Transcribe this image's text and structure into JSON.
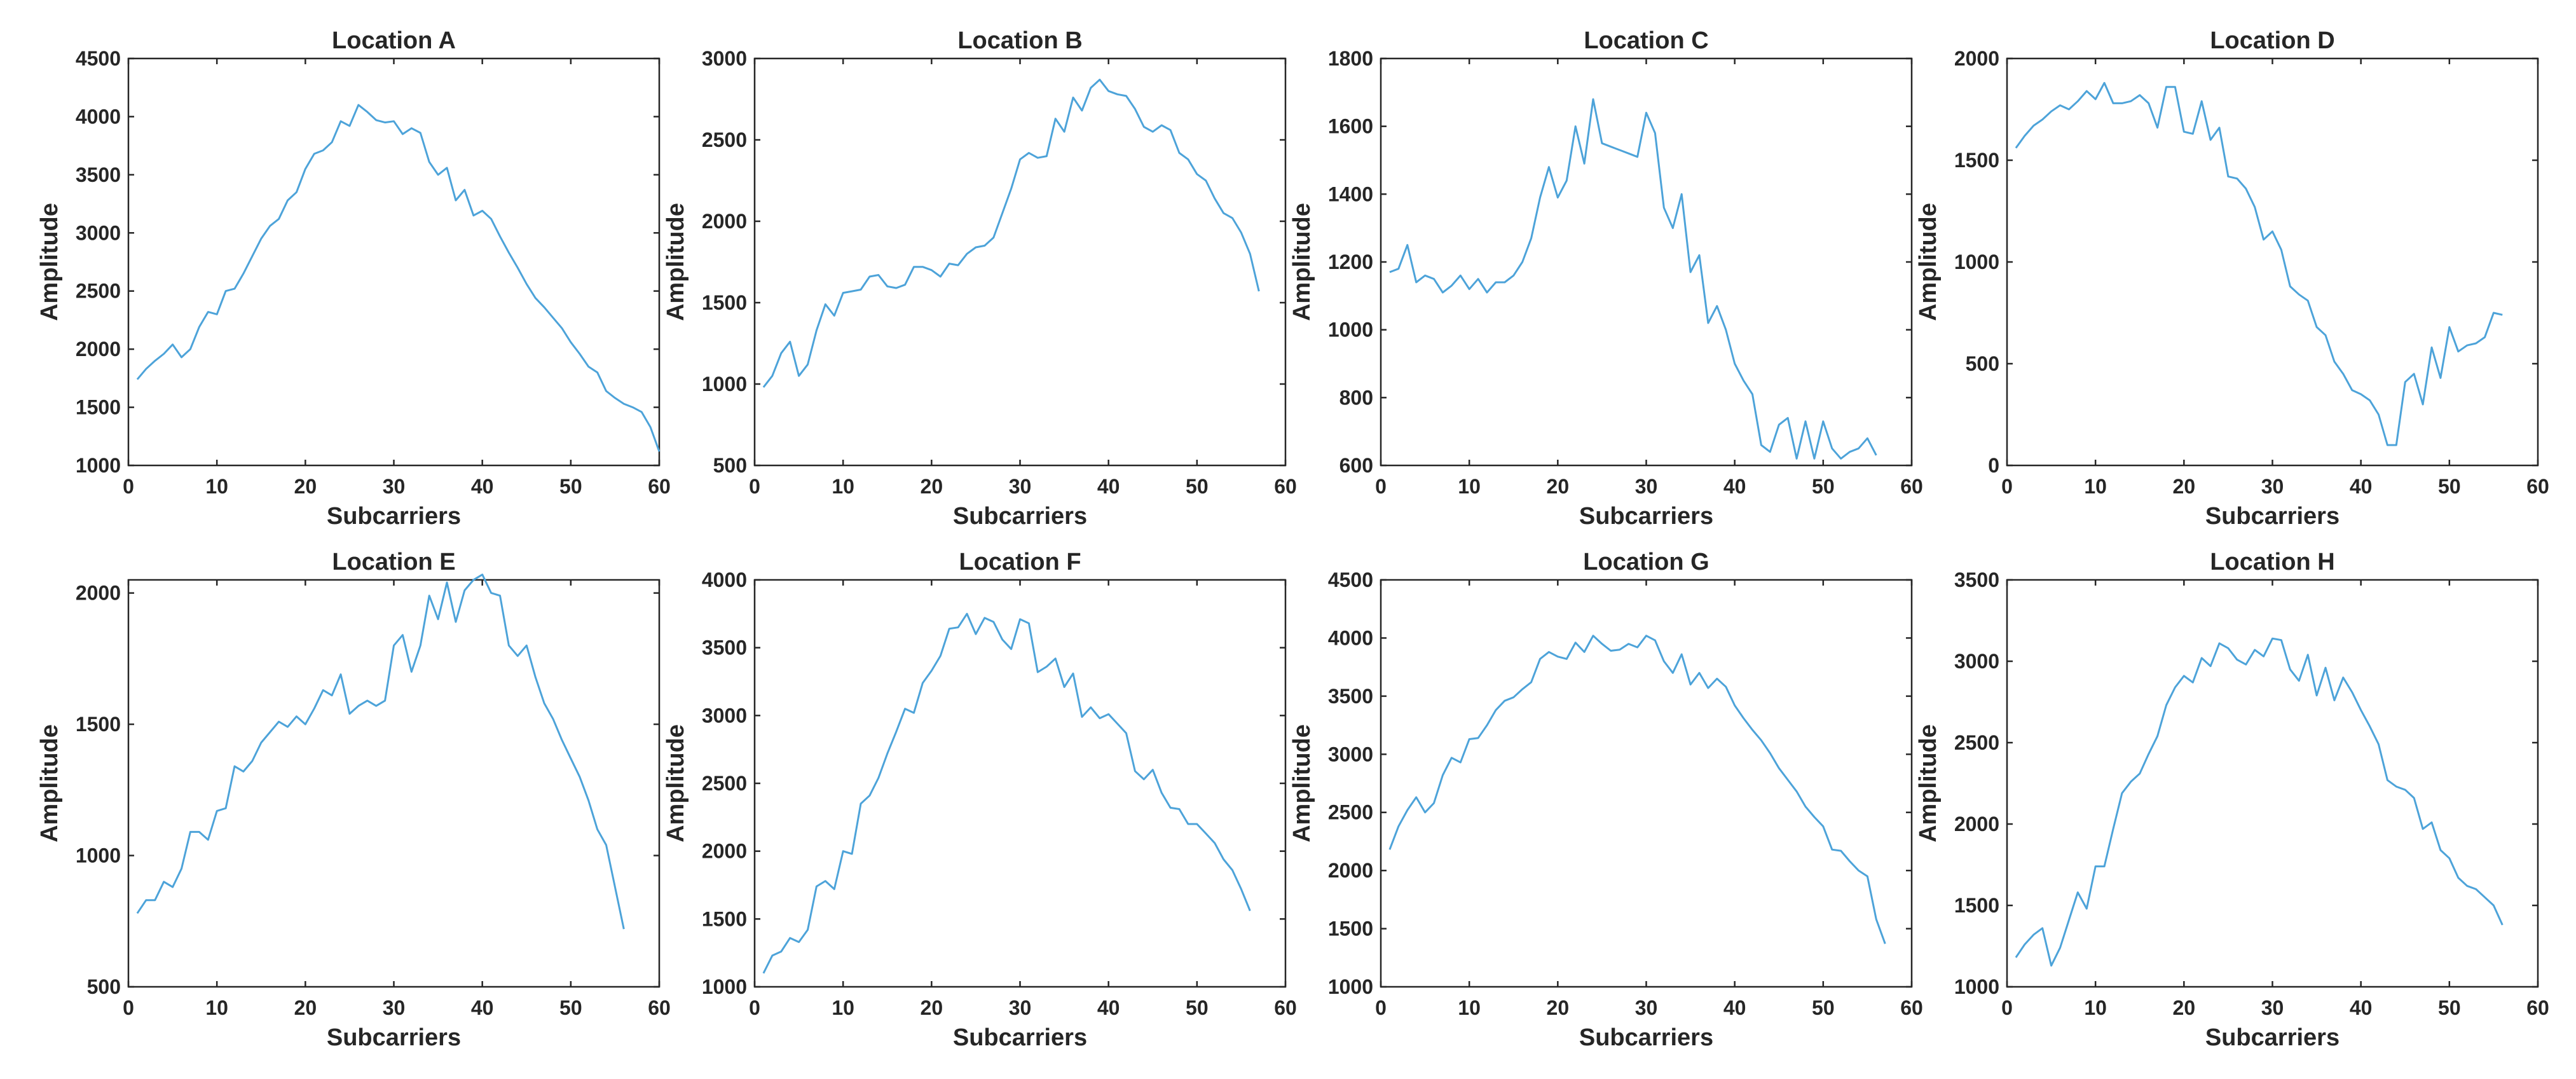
{
  "figure": {
    "line_color": "#4DA3D9",
    "background": "#ffffff"
  },
  "chart_data": [
    {
      "type": "line",
      "title": "Location A",
      "xlabel": "Subcarriers",
      "ylabel": "Amplitude",
      "xlim": [
        0,
        60
      ],
      "ylim": [
        1000,
        4500
      ],
      "xticks": [
        0,
        10,
        20,
        30,
        40,
        50,
        60
      ],
      "yticks": [
        1000,
        1500,
        2000,
        2500,
        3000,
        3500,
        4000,
        4500
      ],
      "grid": false,
      "x_start": 1,
      "values": [
        1740,
        1830,
        1900,
        1960,
        2040,
        1930,
        2000,
        2190,
        2320,
        2300,
        2500,
        2520,
        2650,
        2800,
        2950,
        3060,
        3120,
        3280,
        3350,
        3550,
        3680,
        3710,
        3780,
        3960,
        3920,
        4100,
        4040,
        3970,
        3950,
        3960,
        3850,
        3900,
        3860,
        3610,
        3500,
        3560,
        3280,
        3370,
        3150,
        3190,
        3120,
        2970,
        2830,
        2700,
        2560,
        2440,
        2360,
        2270,
        2180,
        2060,
        1960,
        1850,
        1800,
        1640,
        1580,
        1530,
        1500,
        1460,
        1330,
        1120
      ]
    },
    {
      "type": "line",
      "title": "Location B",
      "xlabel": "Subcarriers",
      "ylabel": "Amplitude",
      "xlim": [
        0,
        60
      ],
      "ylim": [
        500,
        3000
      ],
      "xticks": [
        0,
        10,
        20,
        30,
        40,
        50,
        60
      ],
      "yticks": [
        500,
        1000,
        1500,
        2000,
        2500,
        3000
      ],
      "grid": false,
      "x_start": 1,
      "values": [
        980,
        1050,
        1190,
        1260,
        1050,
        1120,
        1330,
        1490,
        1420,
        1560,
        1570,
        1580,
        1660,
        1670,
        1600,
        1590,
        1610,
        1720,
        1720,
        1700,
        1660,
        1740,
        1730,
        1800,
        1840,
        1850,
        1900,
        2050,
        2200,
        2380,
        2420,
        2390,
        2400,
        2630,
        2550,
        2760,
        2680,
        2820,
        2870,
        2800,
        2780,
        2770,
        2690,
        2580,
        2550,
        2590,
        2560,
        2420,
        2380,
        2290,
        2250,
        2140,
        2050,
        2020,
        1930,
        1800,
        1570
      ]
    },
    {
      "type": "line",
      "title": "Location C",
      "xlabel": "Subcarriers",
      "ylabel": "Amplitude",
      "xlim": [
        0,
        60
      ],
      "ylim": [
        600,
        1800
      ],
      "xticks": [
        0,
        10,
        20,
        30,
        40,
        50,
        60
      ],
      "yticks": [
        600,
        800,
        1000,
        1200,
        1400,
        1600,
        1800
      ],
      "grid": false,
      "x_start": 1,
      "values": [
        1170,
        1180,
        1250,
        1140,
        1160,
        1150,
        1110,
        1130,
        1160,
        1120,
        1150,
        1110,
        1140,
        1140,
        1160,
        1200,
        1270,
        1390,
        1480,
        1390,
        1440,
        1600,
        1490,
        1680,
        1550,
        1540,
        1530,
        1520,
        1510,
        1640,
        1580,
        1360,
        1300,
        1400,
        1170,
        1220,
        1020,
        1070,
        1000,
        900,
        850,
        810,
        660,
        640,
        720,
        740,
        620,
        730,
        620,
        730,
        650,
        620,
        640,
        650,
        680,
        630
      ]
    },
    {
      "type": "line",
      "title": "Location D",
      "xlabel": "Subcarriers",
      "ylabel": "Amplitude",
      "xlim": [
        0,
        60
      ],
      "ylim": [
        0,
        2000
      ],
      "xticks": [
        0,
        10,
        20,
        30,
        40,
        50,
        60
      ],
      "yticks": [
        0,
        500,
        1000,
        1500,
        2000
      ],
      "grid": false,
      "x_start": 1,
      "values": [
        1560,
        1620,
        1670,
        1700,
        1740,
        1770,
        1750,
        1790,
        1840,
        1800,
        1880,
        1780,
        1780,
        1790,
        1820,
        1780,
        1660,
        1860,
        1860,
        1640,
        1630,
        1790,
        1600,
        1660,
        1420,
        1410,
        1360,
        1270,
        1110,
        1150,
        1060,
        880,
        840,
        810,
        680,
        640,
        510,
        450,
        370,
        350,
        320,
        250,
        100,
        100,
        410,
        450,
        300,
        580,
        430,
        680,
        560,
        590,
        600,
        630,
        750,
        740
      ]
    },
    {
      "type": "line",
      "title": "Location E",
      "xlabel": "Subcarriers",
      "ylabel": "Amplitude",
      "xlim": [
        0,
        60
      ],
      "ylim": [
        500,
        2050
      ],
      "xticks": [
        0,
        10,
        20,
        30,
        40,
        50,
        60
      ],
      "yticks": [
        500,
        1000,
        1500,
        2000
      ],
      "grid": false,
      "x_start": 1,
      "values": [
        780,
        830,
        830,
        900,
        880,
        950,
        1090,
        1090,
        1060,
        1170,
        1180,
        1340,
        1320,
        1360,
        1430,
        1470,
        1510,
        1490,
        1530,
        1500,
        1560,
        1630,
        1610,
        1690,
        1540,
        1570,
        1590,
        1570,
        1590,
        1800,
        1840,
        1700,
        1800,
        1990,
        1900,
        2040,
        1890,
        2010,
        2050,
        2070,
        2000,
        1990,
        1800,
        1760,
        1800,
        1680,
        1580,
        1520,
        1440,
        1370,
        1300,
        1210,
        1100,
        1040,
        880,
        720
      ]
    },
    {
      "type": "line",
      "title": "Location F",
      "xlabel": "Subcarriers",
      "ylabel": "Amplitude",
      "xlim": [
        0,
        60
      ],
      "ylim": [
        1000,
        4000
      ],
      "xticks": [
        0,
        10,
        20,
        30,
        40,
        50,
        60
      ],
      "yticks": [
        1000,
        1500,
        2000,
        2500,
        3000,
        3500,
        4000
      ],
      "grid": false,
      "x_start": 1,
      "values": [
        1100,
        1230,
        1260,
        1360,
        1330,
        1420,
        1740,
        1780,
        1720,
        2000,
        1980,
        2350,
        2410,
        2540,
        2720,
        2880,
        3050,
        3020,
        3240,
        3330,
        3440,
        3640,
        3650,
        3750,
        3600,
        3720,
        3690,
        3560,
        3490,
        3710,
        3680,
        3320,
        3360,
        3420,
        3210,
        3310,
        2990,
        3060,
        2980,
        3010,
        2940,
        2870,
        2590,
        2530,
        2600,
        2430,
        2320,
        2310,
        2200,
        2200,
        2130,
        2060,
        1940,
        1860,
        1720,
        1560
      ]
    },
    {
      "type": "line",
      "title": "Location G",
      "xlabel": "Subcarriers",
      "ylabel": "Amplitude",
      "xlim": [
        0,
        60
      ],
      "ylim": [
        1000,
        4500
      ],
      "xticks": [
        0,
        10,
        20,
        30,
        40,
        50,
        60
      ],
      "yticks": [
        1000,
        1500,
        2000,
        2500,
        3000,
        3500,
        4000,
        4500
      ],
      "grid": false,
      "x_start": 1,
      "values": [
        2180,
        2380,
        2520,
        2630,
        2500,
        2580,
        2820,
        2970,
        2930,
        3130,
        3140,
        3250,
        3380,
        3460,
        3490,
        3560,
        3620,
        3820,
        3880,
        3840,
        3820,
        3960,
        3880,
        4020,
        3950,
        3890,
        3900,
        3950,
        3920,
        4020,
        3980,
        3800,
        3700,
        3860,
        3600,
        3700,
        3570,
        3650,
        3580,
        3420,
        3310,
        3210,
        3120,
        3010,
        2880,
        2780,
        2680,
        2550,
        2460,
        2380,
        2180,
        2170,
        2080,
        2000,
        1950,
        1580,
        1370
      ]
    },
    {
      "type": "line",
      "title": "Location H",
      "xlabel": "Subcarriers",
      "ylabel": "Amplitude",
      "xlim": [
        0,
        60
      ],
      "ylim": [
        1000,
        3500
      ],
      "xticks": [
        0,
        10,
        20,
        30,
        40,
        50,
        60
      ],
      "yticks": [
        1000,
        1500,
        2000,
        2500,
        3000,
        3500
      ],
      "grid": false,
      "x_start": 1,
      "values": [
        1180,
        1260,
        1320,
        1360,
        1130,
        1240,
        1410,
        1580,
        1480,
        1740,
        1740,
        1970,
        2190,
        2260,
        2310,
        2430,
        2540,
        2730,
        2840,
        2910,
        2870,
        3020,
        2970,
        3110,
        3080,
        3010,
        2980,
        3070,
        3030,
        3140,
        3130,
        2950,
        2880,
        3040,
        2790,
        2960,
        2760,
        2900,
        2810,
        2700,
        2600,
        2490,
        2270,
        2230,
        2210,
        2160,
        1970,
        2010,
        1840,
        1790,
        1670,
        1620,
        1600,
        1550,
        1500,
        1380
      ]
    }
  ]
}
